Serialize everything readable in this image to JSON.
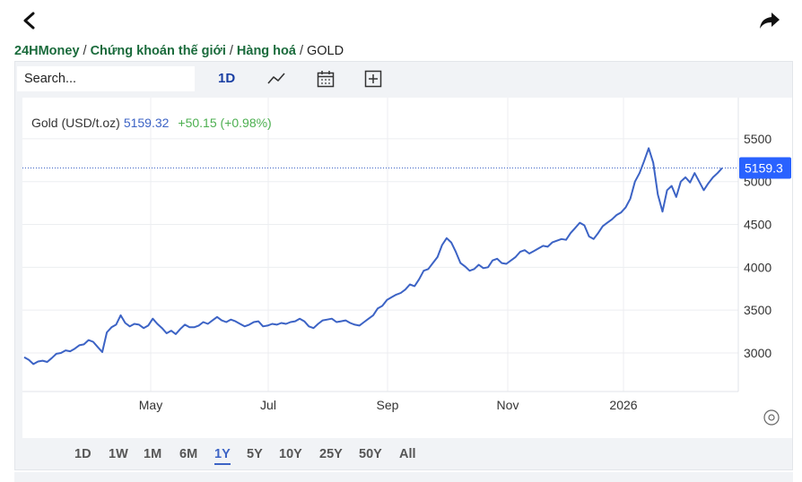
{
  "header": {
    "back_icon": "chevron-left-icon",
    "share_icon": "share-arrow-icon"
  },
  "breadcrumb": {
    "items": [
      "24HMoney",
      "Chứng khoán thế giới",
      "Hàng hoá"
    ],
    "current": "GOLD",
    "separator": "/"
  },
  "toolbar": {
    "search_placeholder": "Search...",
    "interval": "1D",
    "icons": [
      "line-chart-icon",
      "calendar-icon",
      "add-icon"
    ]
  },
  "legend": {
    "symbol": "Gold (USD/t.oz)",
    "price": "5159.32",
    "change": "+50.15 (+0.98%)"
  },
  "price_label": "5159.3",
  "ranges": [
    "1D",
    "1W",
    "1M",
    "6M",
    "1Y",
    "5Y",
    "10Y",
    "25Y",
    "50Y",
    "All"
  ],
  "active_range": "1Y",
  "colors": {
    "line": "#3c63c5",
    "up": "#4caf50",
    "brand": "#1a6b3c",
    "price_tag": "#2962ff"
  },
  "chart_data": {
    "type": "line",
    "title": "Gold (USD/t.oz)",
    "x_ticks": [
      "May",
      "Jul",
      "Sep",
      "Nov",
      "2026"
    ],
    "y_ticks": [
      3000,
      3500,
      4000,
      4500,
      5000,
      5500
    ],
    "ylim": [
      2550,
      5980
    ],
    "last_value": 5159.3,
    "grid": true,
    "series": [
      {
        "values": [
          2950,
          2920,
          2870,
          2900,
          2910,
          2895,
          2940,
          2990,
          3000,
          3030,
          3020,
          3050,
          3090,
          3100,
          3150,
          3130,
          3070,
          3010,
          3240,
          3300,
          3330,
          3440,
          3350,
          3310,
          3340,
          3330,
          3290,
          3320,
          3400,
          3340,
          3290,
          3230,
          3260,
          3220,
          3280,
          3330,
          3300,
          3300,
          3320,
          3360,
          3340,
          3380,
          3420,
          3380,
          3360,
          3390,
          3370,
          3340,
          3310,
          3330,
          3360,
          3370,
          3310,
          3320,
          3340,
          3330,
          3350,
          3340,
          3360,
          3370,
          3400,
          3370,
          3310,
          3290,
          3340,
          3380,
          3390,
          3400,
          3360,
          3370,
          3380,
          3350,
          3330,
          3320,
          3360,
          3400,
          3440,
          3520,
          3550,
          3620,
          3650,
          3680,
          3700,
          3740,
          3800,
          3780,
          3860,
          3960,
          3980,
          4050,
          4120,
          4260,
          4340,
          4290,
          4180,
          4050,
          4010,
          3960,
          3980,
          4030,
          3990,
          4000,
          4080,
          4100,
          4050,
          4040,
          4080,
          4120,
          4180,
          4200,
          4160,
          4190,
          4220,
          4250,
          4240,
          4290,
          4310,
          4330,
          4320,
          4400,
          4460,
          4520,
          4490,
          4360,
          4330,
          4400,
          4480,
          4520,
          4560,
          4610,
          4640,
          4700,
          4800,
          5000,
          5100,
          5240,
          5390,
          5220,
          4850,
          4650,
          4900,
          4950,
          4820,
          5000,
          5050,
          4990,
          5100,
          5000,
          4900,
          4980,
          5050,
          5100,
          5159.32
        ]
      }
    ]
  }
}
